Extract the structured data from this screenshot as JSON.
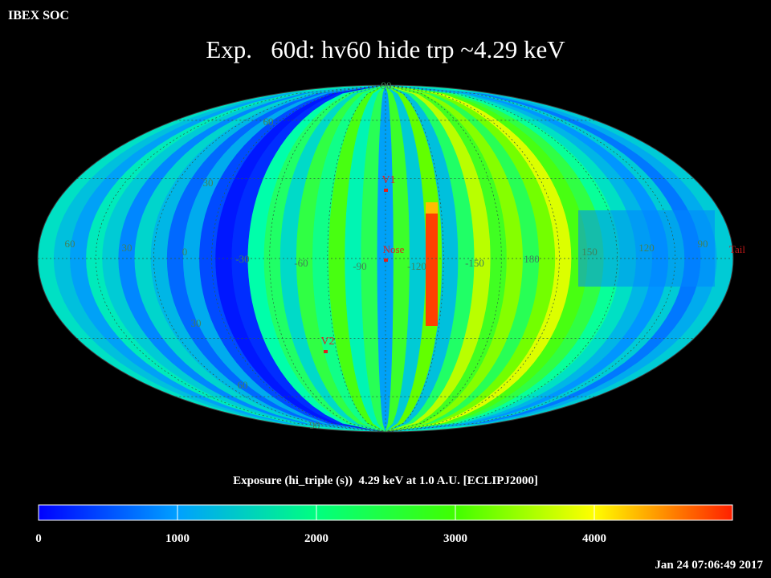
{
  "header": {
    "org_label": "IBEX SOC",
    "title": "Exp.   60d: hv60 hide trp ~4.29 keV"
  },
  "map": {
    "projection": "Mollweide (ecliptic)",
    "lat_labels": [
      "60",
      "30",
      "30",
      "60",
      "90",
      "90"
    ],
    "lon_labels": [
      "60",
      "30",
      "0",
      "-30",
      "-60",
      "-90",
      "-120",
      "-150",
      "180",
      "150",
      "120",
      "90"
    ],
    "markers": [
      {
        "id": "v1",
        "label": "V1",
        "color": "#e0201e"
      },
      {
        "id": "nose",
        "label": "Nose",
        "color": "#e0201e"
      },
      {
        "id": "v2",
        "label": "V2",
        "color": "#e0201e"
      },
      {
        "id": "tail",
        "label": "Tail",
        "color": "#c01818"
      }
    ]
  },
  "colorbar": {
    "title": "Exposure (hi_triple (s))  4.29 keV at 1.0 A.U. [ECLIPJ2000]",
    "ticks": [
      "0",
      "1000",
      "2000",
      "3000",
      "4000"
    ],
    "range": [
      0,
      5000
    ],
    "colors": [
      "#0000ff",
      "#00ffff",
      "#00ff00",
      "#ffff00",
      "#ff0000"
    ]
  },
  "footer": {
    "timestamp": "Jan 24 07:06:49 2017"
  }
}
